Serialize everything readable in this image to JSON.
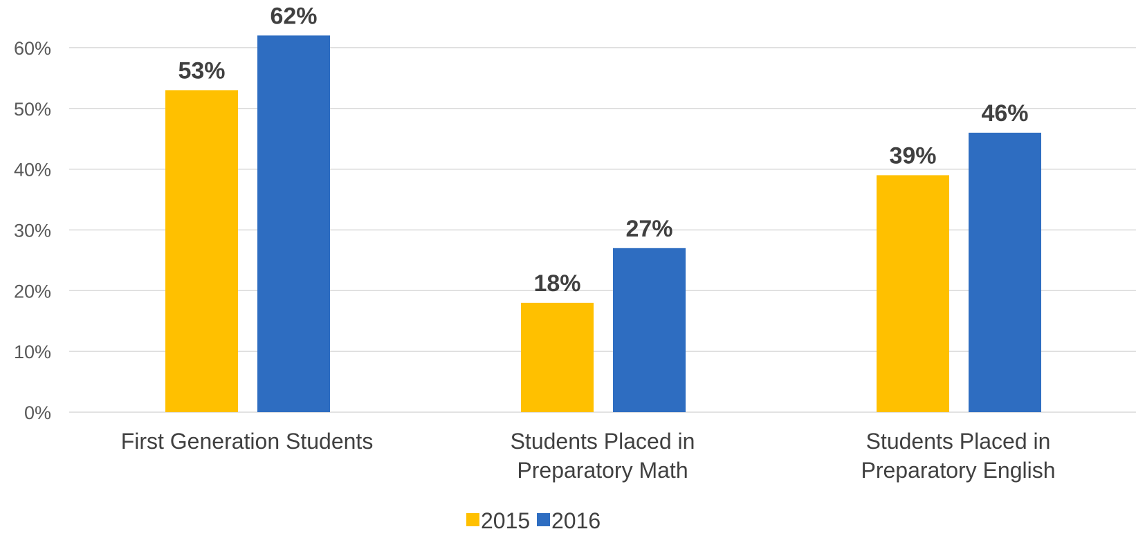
{
  "chart_data": {
    "type": "bar",
    "title": "",
    "xlabel": "",
    "ylabel": "",
    "categories": [
      [
        "First Generation Students"
      ],
      [
        "Students Placed in",
        "Preparatory Math"
      ],
      [
        "Students Placed in",
        "Preparatory English"
      ]
    ],
    "series": [
      {
        "name": "2015",
        "color": "#FFC000",
        "values": [
          53,
          18,
          39
        ],
        "labels": [
          "53%",
          "18%",
          "39%"
        ]
      },
      {
        "name": "2016",
        "color": "#2E6DC1",
        "values": [
          62,
          27,
          46
        ],
        "labels": [
          "62%",
          "27%",
          "46%"
        ]
      }
    ],
    "ylim": [
      0,
      60
    ],
    "yticks": [
      "0%",
      "10%",
      "20%",
      "30%",
      "40%",
      "50%",
      "60%"
    ],
    "grid": true,
    "legend": "bottom"
  }
}
